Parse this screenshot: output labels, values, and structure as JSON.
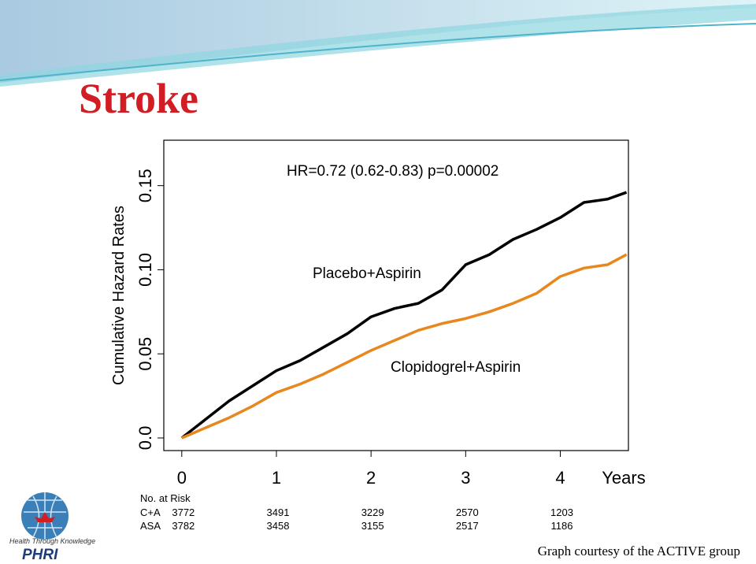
{
  "slide": {
    "title": "Stroke",
    "footer": "Graph courtesy of the ACTIVE group",
    "logo": {
      "tagline": "Health Through Knowledge",
      "name": "PHRI"
    }
  },
  "chart_data": {
    "type": "line",
    "ylabel": "Cumulative Hazard Rates",
    "xlabel": "Years",
    "annotation": "HR=0.72 (0.62-0.83) p=0.00002",
    "x": [
      0,
      0.25,
      0.5,
      0.75,
      1,
      1.25,
      1.5,
      1.75,
      2,
      2.25,
      2.5,
      2.75,
      3,
      3.25,
      3.5,
      3.75,
      4,
      4.25,
      4.5,
      4.7
    ],
    "series": [
      {
        "name": "Placebo+Aspirin",
        "color": "#000000",
        "values": [
          0,
          0.011,
          0.022,
          0.031,
          0.04,
          0.046,
          0.054,
          0.062,
          0.072,
          0.077,
          0.08,
          0.088,
          0.103,
          0.109,
          0.118,
          0.124,
          0.131,
          0.14,
          0.142,
          0.146
        ]
      },
      {
        "name": "Clopidogrel+Aspirin",
        "color": "#e8871e",
        "values": [
          0,
          0.006,
          0.012,
          0.019,
          0.027,
          0.032,
          0.038,
          0.045,
          0.052,
          0.058,
          0.064,
          0.068,
          0.071,
          0.075,
          0.08,
          0.086,
          0.096,
          0.101,
          0.103,
          0.109
        ]
      }
    ],
    "xlim": [
      -0.19,
      4.72
    ],
    "xticks": [
      0,
      1,
      2,
      3,
      4
    ],
    "ylim": [
      -0.0075,
      0.177
    ],
    "yticks": [
      {
        "value": 0,
        "label": "0.0"
      },
      0.05,
      {
        "value": 0.1,
        "label": "0.10"
      },
      0.15
    ],
    "risk_table": {
      "title": "No. at Risk",
      "rows": [
        {
          "label": "C+A",
          "values": [
            3772,
            3491,
            3229,
            2570,
            1203
          ]
        },
        {
          "label": "ASA",
          "values": [
            3782,
            3458,
            3155,
            2517,
            1186
          ]
        }
      ]
    }
  }
}
